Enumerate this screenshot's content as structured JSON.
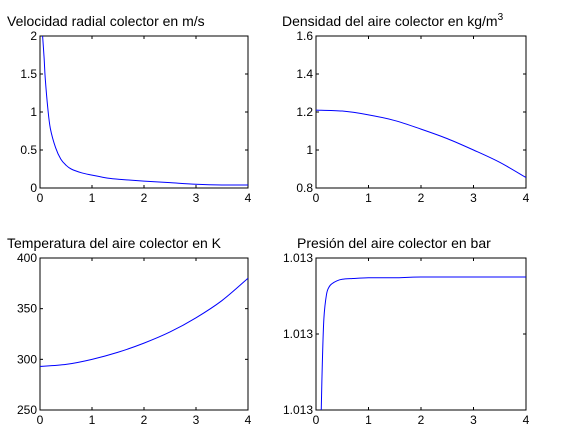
{
  "chart_data": [
    {
      "type": "line",
      "title": "Velocidad radial colector en m/s",
      "xlim": [
        0,
        4
      ],
      "ylim": [
        0,
        2
      ],
      "xticks": [
        0,
        1,
        2,
        3,
        4
      ],
      "xtick_labels": [
        "0",
        "1",
        "2",
        "3",
        "4"
      ],
      "yticks": [
        0,
        0.5,
        1,
        1.5,
        2
      ],
      "ytick_labels": [
        "0",
        "0.5",
        "1",
        "1.5",
        "2"
      ],
      "grid": false,
      "series": [
        {
          "color": "#0000ff",
          "x": [
            0.05,
            0.08,
            0.1,
            0.15,
            0.2,
            0.3,
            0.4,
            0.5,
            0.6,
            0.8,
            1.0,
            1.3,
            1.6,
            2.0,
            2.5,
            3.0,
            3.5,
            4.0
          ],
          "y": [
            2.0,
            1.7,
            1.45,
            1.05,
            0.78,
            0.53,
            0.38,
            0.3,
            0.25,
            0.2,
            0.17,
            0.13,
            0.11,
            0.09,
            0.07,
            0.05,
            0.04,
            0.04
          ]
        }
      ]
    },
    {
      "type": "line",
      "title": "Densidad del aire colector en kg/m",
      "title_sup": "3",
      "xlim": [
        0,
        4
      ],
      "ylim": [
        0.8,
        1.6
      ],
      "xticks": [
        0,
        1,
        2,
        3,
        4
      ],
      "xtick_labels": [
        "0",
        "1",
        "2",
        "3",
        "4"
      ],
      "yticks": [
        0.8,
        1.0,
        1.2,
        1.4,
        1.6
      ],
      "ytick_labels": [
        "0.8",
        "1",
        "1.2",
        "1.4",
        "1.6"
      ],
      "grid": false,
      "series": [
        {
          "color": "#0000ff",
          "x": [
            0,
            0.5,
            1.0,
            1.5,
            2.0,
            2.5,
            3.0,
            3.5,
            4.0
          ],
          "y": [
            1.21,
            1.205,
            1.185,
            1.155,
            1.11,
            1.06,
            1.0,
            0.935,
            0.855
          ]
        }
      ]
    },
    {
      "type": "line",
      "title": "Temperatura del aire colector en K",
      "xlim": [
        0,
        4
      ],
      "ylim": [
        250,
        400
      ],
      "xticks": [
        0,
        1,
        2,
        3,
        4
      ],
      "xtick_labels": [
        "0",
        "1",
        "2",
        "3",
        "4"
      ],
      "yticks": [
        250,
        300,
        350,
        400
      ],
      "ytick_labels": [
        "250",
        "300",
        "350",
        "400"
      ],
      "grid": false,
      "series": [
        {
          "color": "#0000ff",
          "x": [
            0,
            0.5,
            1.0,
            1.5,
            2.0,
            2.5,
            3.0,
            3.5,
            4.0
          ],
          "y": [
            293,
            295,
            300,
            307,
            316,
            327,
            341,
            358,
            380
          ]
        }
      ]
    },
    {
      "type": "line",
      "title": "Presión del aire  colector en bar",
      "xlim": [
        0,
        4
      ],
      "ylim": [
        0,
        1
      ],
      "xticks": [
        0,
        1,
        2,
        3,
        4
      ],
      "xtick_labels": [
        "0",
        "1",
        "2",
        "3",
        "4"
      ],
      "yticks": [
        0,
        0.5,
        1
      ],
      "ytick_labels": [
        "1.013",
        "1.013",
        "1.013"
      ],
      "grid": false,
      "series": [
        {
          "color": "#0000ff",
          "x": [
            0.1,
            0.12,
            0.15,
            0.2,
            0.25,
            0.3,
            0.4,
            0.5,
            0.7,
            1.0,
            1.5,
            2.0,
            3.0,
            4.0
          ],
          "y": [
            0.0,
            0.3,
            0.6,
            0.76,
            0.81,
            0.83,
            0.85,
            0.86,
            0.865,
            0.87,
            0.87,
            0.875,
            0.875,
            0.875
          ]
        }
      ]
    }
  ]
}
